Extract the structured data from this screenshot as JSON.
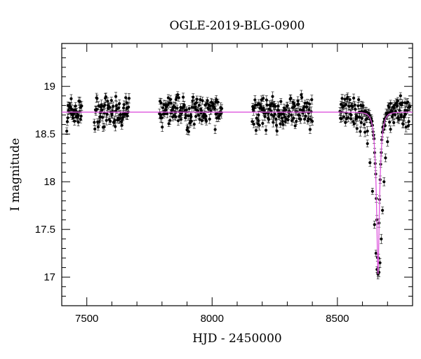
{
  "chart_data": {
    "type": "scatter",
    "title": "OGLE-2019-BLG-0900",
    "xlabel": "HJD - 2450000",
    "ylabel": "I magnitude",
    "xlim": [
      7400,
      8800
    ],
    "ylim": [
      19.45,
      16.7
    ],
    "y_inverted": true,
    "x_ticks": [
      7500,
      8000,
      8500
    ],
    "y_ticks": [
      17,
      17.5,
      18,
      18.5,
      19
    ],
    "x_tick_labels": [
      "7500",
      "8000",
      "8500"
    ],
    "y_tick_labels": [
      "17",
      "17.5",
      "18",
      "18.5",
      "19"
    ],
    "grid": false,
    "series": [
      {
        "kind": "points-with-errorbars",
        "color": "#000000",
        "baseline_mag": 18.73,
        "season_ranges": [
          [
            7420,
            7480
          ],
          [
            7530,
            7670
          ],
          [
            7790,
            8040
          ],
          [
            8160,
            8400
          ],
          [
            8510,
            8790
          ]
        ],
        "points": [
          [
            7425,
            18.8
          ],
          [
            7435,
            18.72
          ],
          [
            7445,
            18.67
          ],
          [
            7455,
            18.75
          ],
          [
            7465,
            18.7
          ],
          [
            7475,
            18.78
          ],
          [
            7540,
            18.76
          ],
          [
            7555,
            18.68
          ],
          [
            7570,
            18.72
          ],
          [
            7585,
            18.8
          ],
          [
            7600,
            18.7
          ],
          [
            7615,
            18.74
          ],
          [
            7630,
            18.82
          ],
          [
            7645,
            18.71
          ],
          [
            7660,
            18.77
          ],
          [
            7795,
            18.7
          ],
          [
            7815,
            18.75
          ],
          [
            7835,
            18.72
          ],
          [
            7855,
            18.68
          ],
          [
            7875,
            18.78
          ],
          [
            7895,
            18.73
          ],
          [
            7915,
            18.7
          ],
          [
            7935,
            18.76
          ],
          [
            7955,
            18.72
          ],
          [
            7975,
            18.69
          ],
          [
            7995,
            18.74
          ],
          [
            8015,
            18.71
          ],
          [
            8035,
            18.73
          ],
          [
            8165,
            18.74
          ],
          [
            8185,
            18.7
          ],
          [
            8205,
            18.77
          ],
          [
            8225,
            18.72
          ],
          [
            8245,
            18.69
          ],
          [
            8265,
            18.75
          ],
          [
            8285,
            18.71
          ],
          [
            8305,
            18.73
          ],
          [
            8325,
            18.78
          ],
          [
            8345,
            18.7
          ],
          [
            8365,
            18.74
          ],
          [
            8385,
            18.72
          ],
          [
            8515,
            18.73
          ],
          [
            8535,
            18.72
          ],
          [
            8555,
            18.7
          ],
          [
            8575,
            18.68
          ],
          [
            8595,
            18.62
          ],
          [
            8610,
            18.52
          ],
          [
            8620,
            18.4
          ],
          [
            8630,
            18.2
          ],
          [
            8640,
            17.9
          ],
          [
            8648,
            17.55
          ],
          [
            8654,
            17.25
          ],
          [
            8658,
            17.08
          ],
          [
            8662,
            17.03
          ],
          [
            8666,
            17.05
          ],
          [
            8670,
            17.15
          ],
          [
            8675,
            17.4
          ],
          [
            8680,
            17.7
          ],
          [
            8686,
            18.0
          ],
          [
            8692,
            18.25
          ],
          [
            8700,
            18.42
          ],
          [
            8712,
            18.55
          ],
          [
            8725,
            18.62
          ],
          [
            8740,
            18.67
          ],
          [
            8755,
            18.7
          ],
          [
            8770,
            18.75
          ],
          [
            8785,
            18.78
          ]
        ]
      },
      {
        "kind": "model-curve",
        "color": "#dd55dd",
        "baseline_mag": 18.73,
        "peak_time": 8662,
        "peak_mag": 17.03,
        "einstein_time_days": 16,
        "impact_parameter": 0.2
      }
    ]
  }
}
